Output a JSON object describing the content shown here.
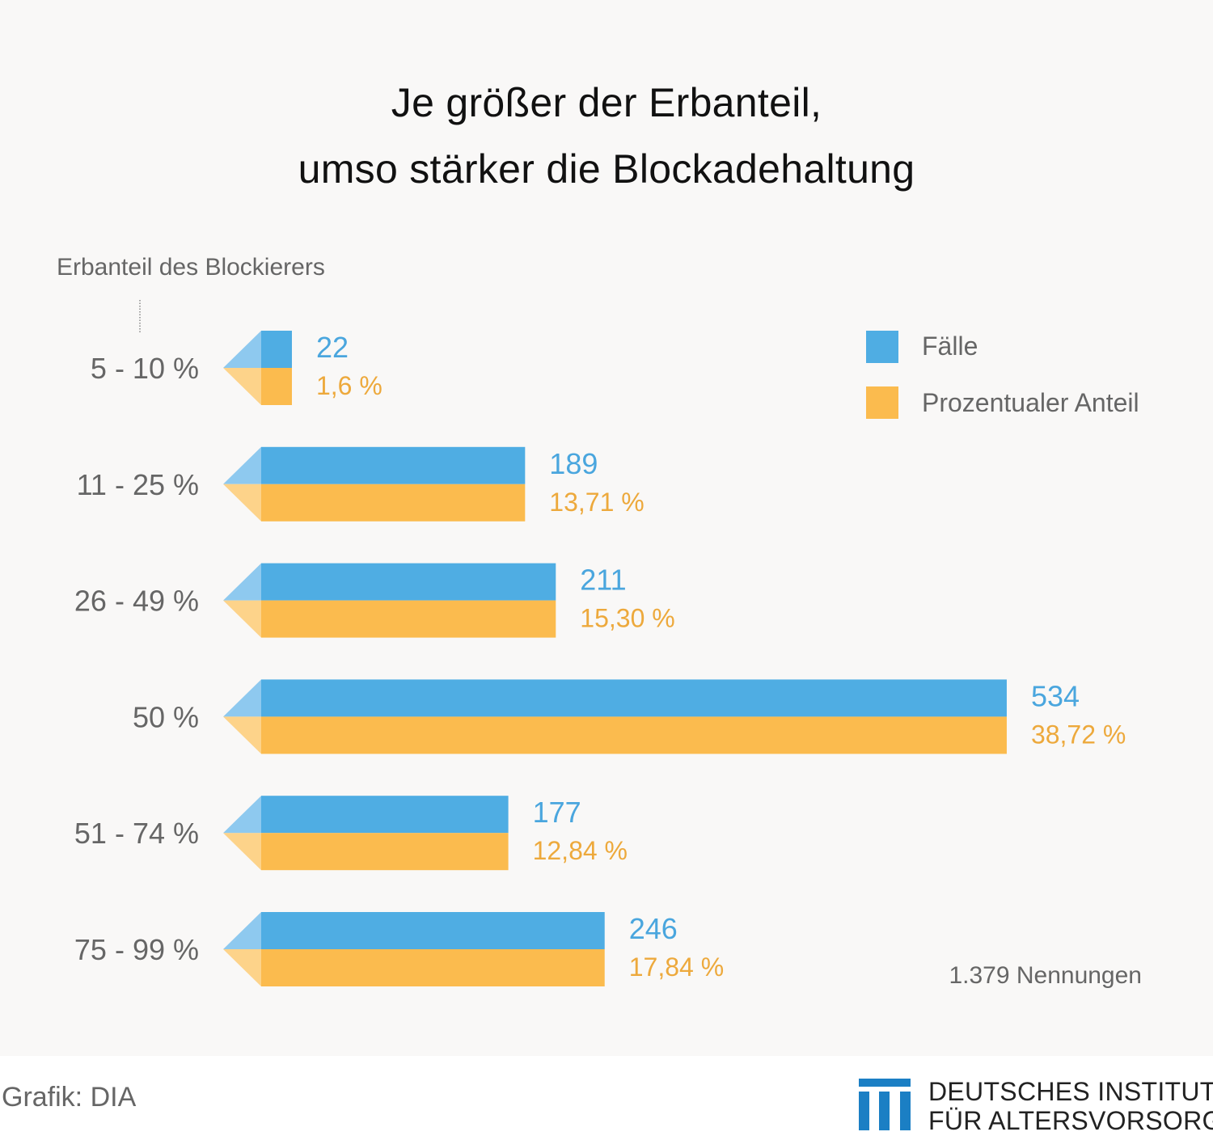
{
  "chart_data": {
    "type": "bar",
    "orientation": "horizontal",
    "title": "Je größer der Erbanteil,",
    "subtitle": "umso stärker die Blockadehaltung",
    "ylabel": "Erbanteil des Blockierers",
    "categories": [
      "5 - 10 %",
      "11 - 25 %",
      "26 - 49 %",
      "50 %",
      "51 - 74 %",
      "75 - 99 %"
    ],
    "series": [
      {
        "name": "Fälle",
        "color": "#4fade3",
        "values": [
          22,
          189,
          211,
          534,
          177,
          246
        ],
        "labels": [
          "22",
          "189",
          "211",
          "534",
          "177",
          "246"
        ]
      },
      {
        "name": "Prozentualer Anteil",
        "color": "#fbbb4e",
        "values": [
          1.6,
          13.71,
          15.3,
          38.72,
          12.84,
          17.84
        ],
        "labels": [
          "1,6 %",
          "13,71 %",
          "15,30 %",
          "38,72 %",
          "12,84 %",
          "17,84 %"
        ]
      }
    ],
    "grid": false,
    "legend_position": "top-right"
  },
  "total_note": "1.379 Nennungen",
  "credit": "Grafik: DIA",
  "logo": {
    "line1": "DEUTSCHES INSTITUT",
    "line2": "FÜR ALTERSVORSORGE",
    "color": "#1b7fc4"
  }
}
